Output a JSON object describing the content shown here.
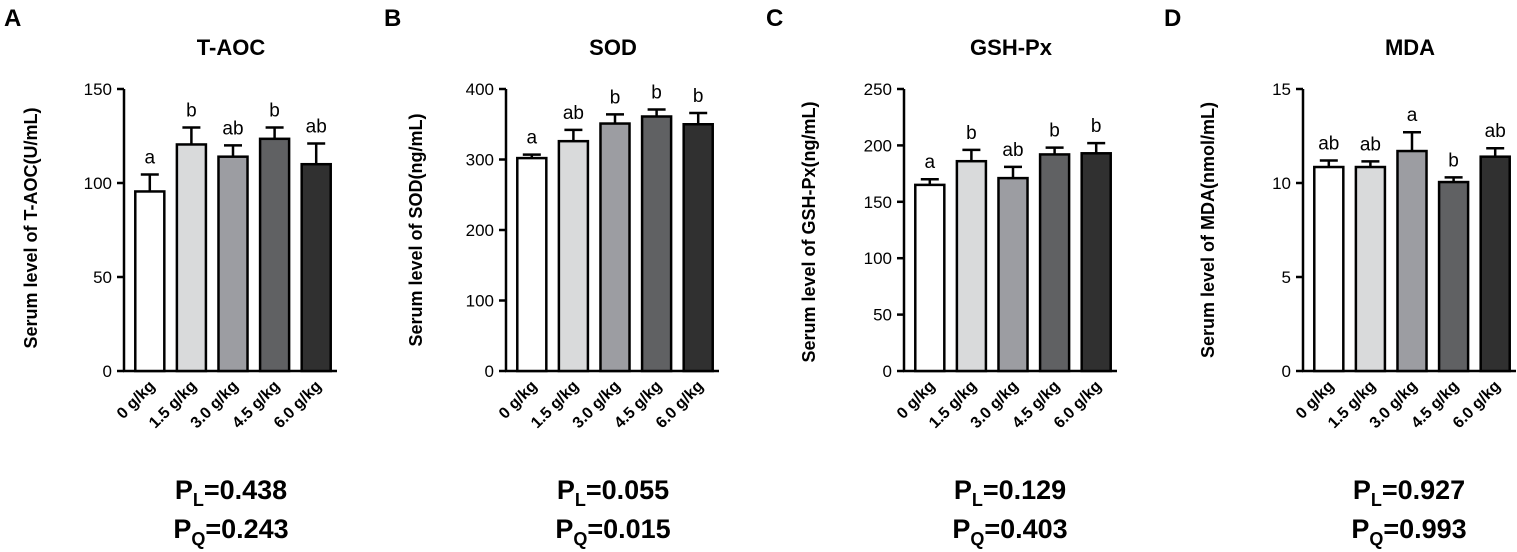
{
  "colors": {
    "bar_fills": [
      "#ffffff",
      "#d9dadb",
      "#9c9da2",
      "#606163",
      "#303030"
    ],
    "stroke": "#000000"
  },
  "chart_data": [
    {
      "type": "bar",
      "panel": "A",
      "title": "T-AOC",
      "ylabel": "Serum level of T-AOC(U/mL)",
      "xlabel": "",
      "categories": [
        "0 g/kg",
        "1.5 g/kg",
        "3.0 g/kg",
        "4.5 g/kg",
        "6.0 g/kg"
      ],
      "values": [
        95.5,
        120.5,
        114,
        123.5,
        110
      ],
      "errors": [
        9,
        9,
        6,
        6,
        11
      ],
      "significance": [
        "a",
        "b",
        "ab",
        "b",
        "ab"
      ],
      "ylim": [
        0,
        150
      ],
      "yticks": [
        0,
        50,
        100,
        150
      ],
      "stats": {
        "pl_value": "=0.438",
        "pq_value": "=0.243"
      }
    },
    {
      "type": "bar",
      "panel": "B",
      "title": "SOD",
      "ylabel": "Serum level of SOD(ng/mL)",
      "xlabel": "",
      "categories": [
        "0 g/kg",
        "1.5 g/kg",
        "3.0 g/kg",
        "4.5 g/kg",
        "6.0 g/kg"
      ],
      "values": [
        302,
        326,
        351,
        361,
        350
      ],
      "errors": [
        5,
        16,
        13,
        10,
        16
      ],
      "significance": [
        "a",
        "ab",
        "b",
        "b",
        "b"
      ],
      "ylim": [
        0,
        400
      ],
      "yticks": [
        0,
        100,
        200,
        300,
        400
      ],
      "stats": {
        "pl_value": "=0.055",
        "pq_value": "=0.015"
      }
    },
    {
      "type": "bar",
      "panel": "C",
      "title": "GSH-Px",
      "ylabel": "Serum level of GSH-Px(ng/mL)",
      "xlabel": "",
      "categories": [
        "0 g/kg",
        "1.5 g/kg",
        "3.0 g/kg",
        "4.5 g/kg",
        "6.0 g/kg"
      ],
      "values": [
        165,
        186,
        171,
        192,
        193
      ],
      "errors": [
        5,
        10,
        10,
        6,
        9
      ],
      "significance": [
        "a",
        "b",
        "ab",
        "b",
        "b"
      ],
      "ylim": [
        0,
        250
      ],
      "yticks": [
        0,
        50,
        100,
        150,
        200,
        250
      ],
      "stats": {
        "pl_value": "=0.129",
        "pq_value": "=0.403"
      }
    },
    {
      "type": "bar",
      "panel": "D",
      "title": "MDA",
      "ylabel": "Serum level of MDA(nmol/mL)",
      "xlabel": "",
      "categories": [
        "0 g/kg",
        "1.5 g/kg",
        "3.0 g/kg",
        "4.5 g/kg",
        "6.0 g/kg"
      ],
      "values": [
        10.85,
        10.85,
        11.7,
        10.05,
        11.4
      ],
      "errors": [
        0.35,
        0.3,
        1.0,
        0.25,
        0.45
      ],
      "significance": [
        "ab",
        "ab",
        "a",
        "b",
        "ab"
      ],
      "ylim": [
        0,
        15
      ],
      "yticks": [
        0,
        5,
        10,
        15
      ],
      "stats": {
        "pl_value": "=0.927",
        "pq_value": "=0.993"
      }
    }
  ]
}
